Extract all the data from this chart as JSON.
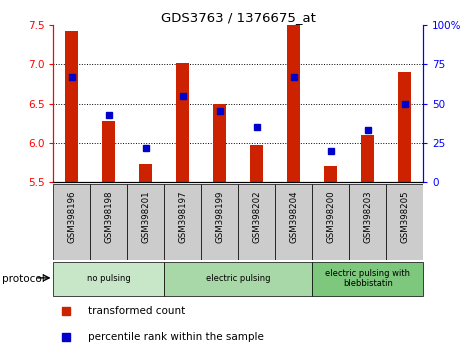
{
  "title": "GDS3763 / 1376675_at",
  "samples": [
    "GSM398196",
    "GSM398198",
    "GSM398201",
    "GSM398197",
    "GSM398199",
    "GSM398202",
    "GSM398204",
    "GSM398200",
    "GSM398203",
    "GSM398205"
  ],
  "transformed_count": [
    7.42,
    6.28,
    5.73,
    7.02,
    6.5,
    5.98,
    7.5,
    5.71,
    6.1,
    6.9
  ],
  "percentile_rank": [
    67,
    43,
    22,
    55,
    45,
    35,
    67,
    20,
    33,
    50
  ],
  "ylim_left": [
    5.5,
    7.5
  ],
  "ylim_right": [
    0,
    100
  ],
  "yticks_left": [
    5.5,
    6.0,
    6.5,
    7.0,
    7.5
  ],
  "yticks_right": [
    0,
    25,
    50,
    75,
    100
  ],
  "ytick_labels_right": [
    "0",
    "25",
    "50",
    "75",
    "100%"
  ],
  "bar_color": "#cc2200",
  "dot_color": "#0000cc",
  "groups": [
    {
      "label": "no pulsing",
      "start": 0,
      "end": 3,
      "color": "#c8e6c8"
    },
    {
      "label": "electric pulsing",
      "start": 3,
      "end": 7,
      "color": "#a8d8a8"
    },
    {
      "label": "electric pulsing with\nblebbistatin",
      "start": 7,
      "end": 10,
      "color": "#7ec87e"
    }
  ],
  "grid_yticks": [
    6.0,
    6.5,
    7.0
  ],
  "protocol_label": "protocol",
  "legend_items": [
    "transformed count",
    "percentile rank within the sample"
  ],
  "bar_width": 0.35
}
